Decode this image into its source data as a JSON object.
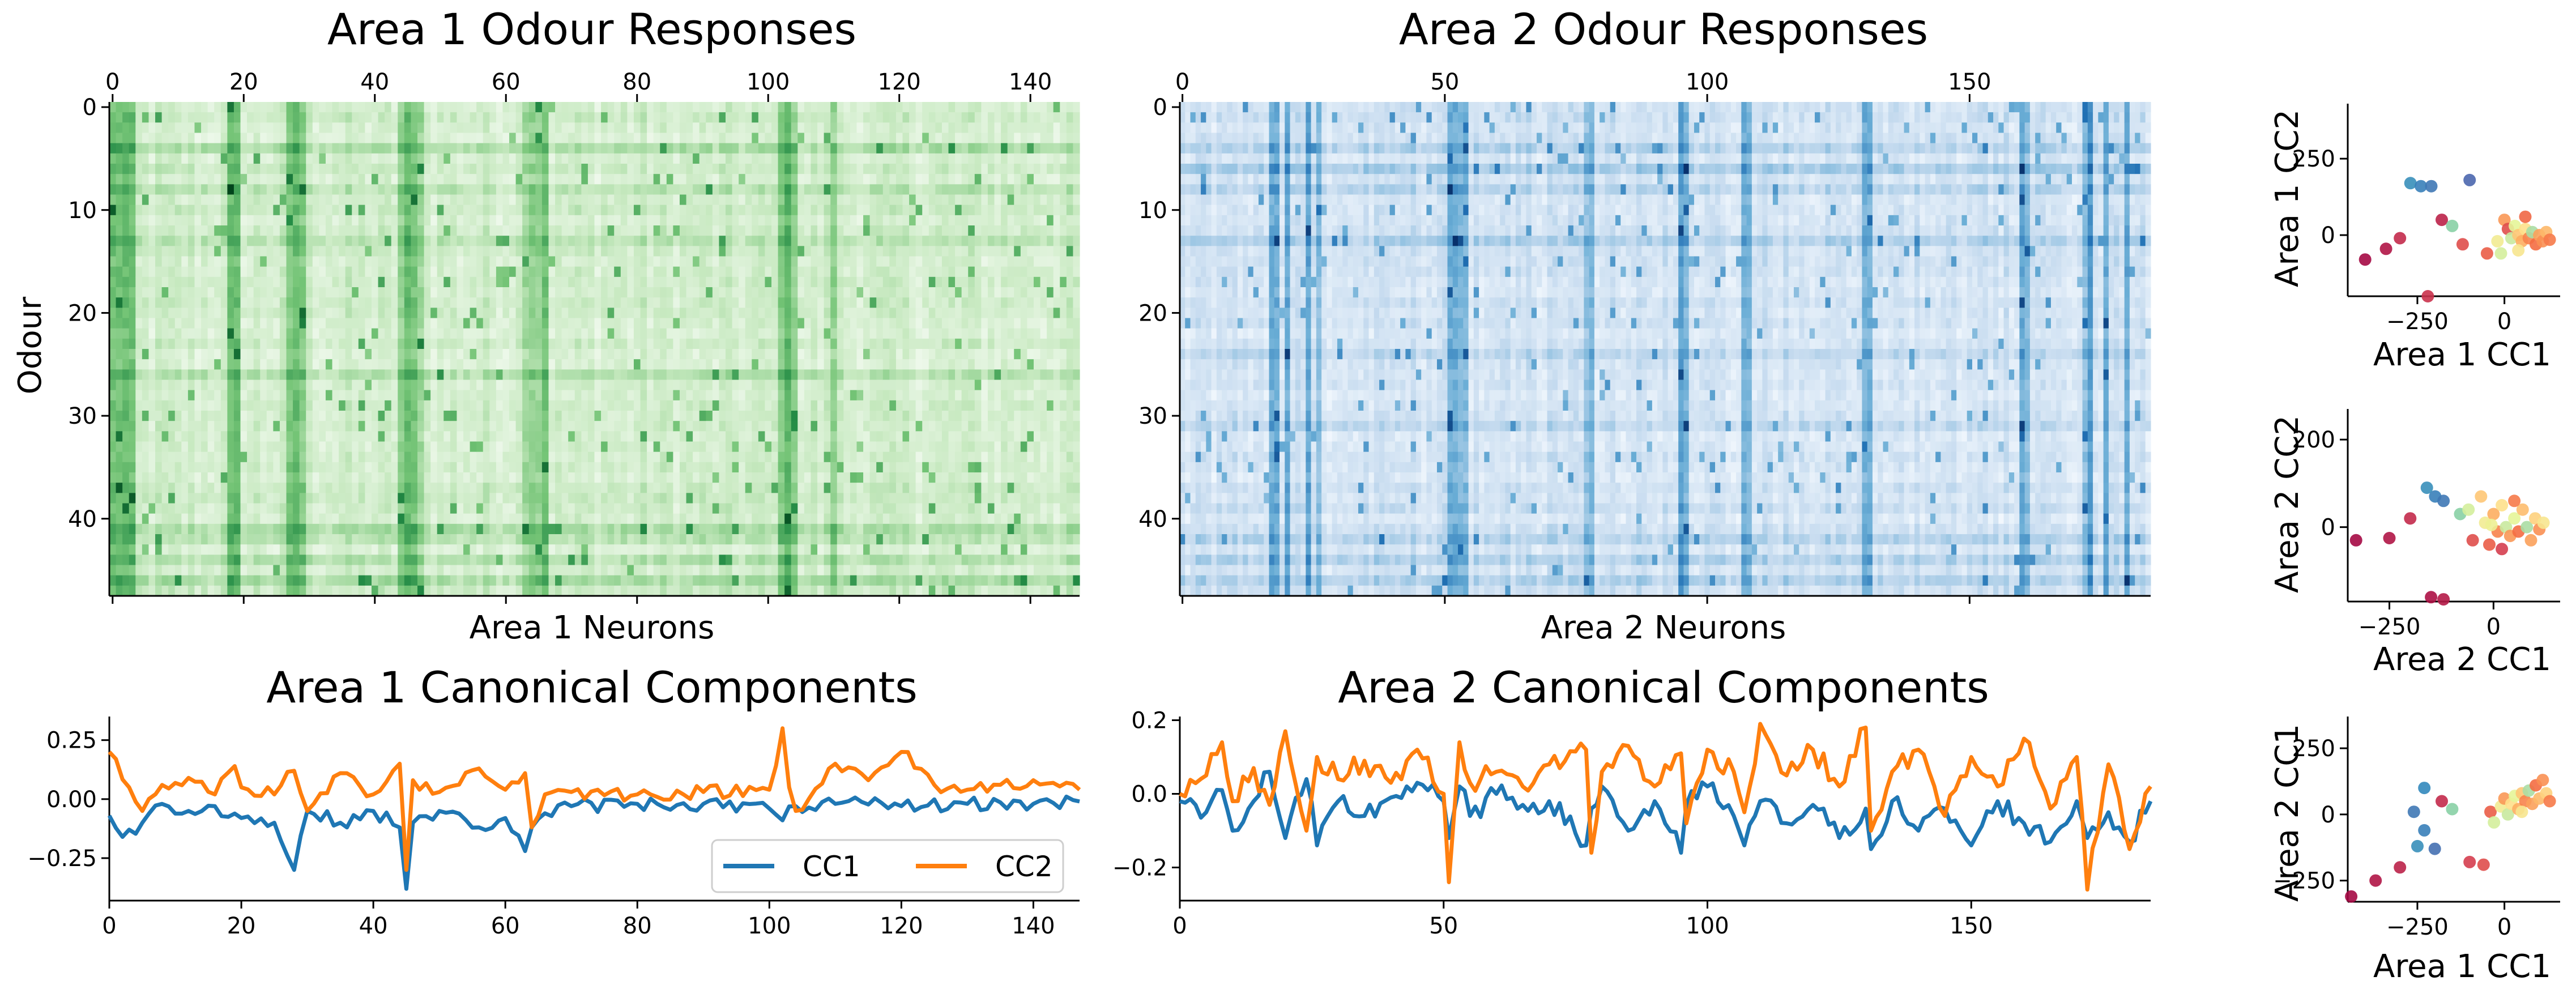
{
  "chart_data": [
    {
      "type": "heatmap",
      "title": "Area 1 Odour Responses",
      "xlabel": "Area 1 Neurons",
      "ylabel": "Odour",
      "x_ticks": [
        0,
        20,
        40,
        60,
        80,
        100,
        120,
        140
      ],
      "y_ticks": [
        0,
        10,
        20,
        30,
        40
      ],
      "n_neurons": 148,
      "n_odours": 48,
      "colormap": "Greens",
      "strong_neuron_columns": [
        0,
        1,
        2,
        3,
        18,
        19,
        27,
        28,
        29,
        44,
        45,
        46,
        47,
        63,
        64,
        65,
        66,
        102,
        103,
        104,
        110
      ],
      "strong_odour_rows": [
        4,
        8,
        13,
        26,
        41,
        42,
        44,
        46
      ],
      "description_level": "approximate"
    },
    {
      "type": "heatmap",
      "title": "Area 2 Odour Responses",
      "xlabel": "Area 2 Neurons",
      "ylabel": "",
      "x_ticks": [
        0,
        50,
        100,
        150
      ],
      "y_ticks": [
        0,
        10,
        20,
        30,
        40
      ],
      "n_neurons": 185,
      "n_odours": 48,
      "colormap": "Blues",
      "strong_neuron_columns": [
        17,
        18,
        20,
        24,
        26,
        51,
        52,
        53,
        54,
        77,
        78,
        95,
        96,
        107,
        108,
        130,
        131,
        160,
        161,
        172,
        173,
        176,
        180
      ],
      "strong_odour_rows": [
        4,
        6,
        8,
        13,
        24,
        31,
        42,
        44,
        46
      ],
      "description_level": "approximate"
    },
    {
      "type": "line",
      "title": "Area 1 Canonical Components",
      "xlim": [
        0,
        147
      ],
      "ylim": [
        -0.43,
        0.35
      ],
      "x_ticks": [
        0,
        20,
        40,
        60,
        80,
        100,
        120,
        140
      ],
      "y_ticks": [
        "0.25",
        "0.00",
        "−0.25"
      ],
      "y_tick_values": [
        0.25,
        0.0,
        -0.25
      ],
      "legend": {
        "position": "lower-right",
        "entries": [
          "CC1",
          "CC2"
        ]
      },
      "series": [
        {
          "name": "CC1",
          "color": "#1f77b4",
          "x": [
            0,
            2,
            5,
            8,
            12,
            16,
            20,
            25,
            28,
            30,
            35,
            40,
            44,
            45,
            46,
            50,
            56,
            60,
            63,
            64,
            66,
            70,
            80,
            90,
            100,
            102,
            104,
            110,
            120,
            130,
            140,
            147
          ],
          "y": [
            -0.07,
            -0.16,
            -0.1,
            -0.02,
            -0.05,
            -0.03,
            -0.08,
            -0.1,
            -0.3,
            -0.05,
            -0.1,
            -0.05,
            -0.12,
            -0.38,
            -0.1,
            -0.05,
            -0.12,
            -0.08,
            -0.22,
            -0.12,
            -0.06,
            -0.03,
            -0.02,
            -0.02,
            -0.04,
            -0.09,
            -0.03,
            -0.02,
            -0.03,
            -0.02,
            -0.02,
            -0.01
          ]
        },
        {
          "name": "CC2",
          "color": "#ff7f0e",
          "x": [
            0,
            1,
            3,
            5,
            8,
            12,
            16,
            19,
            20,
            25,
            28,
            30,
            35,
            40,
            44,
            45,
            46,
            50,
            56,
            60,
            63,
            64,
            66,
            70,
            80,
            90,
            100,
            102,
            103,
            104,
            110,
            115,
            120,
            125,
            130,
            140,
            147
          ],
          "y": [
            0.2,
            0.17,
            0.05,
            -0.05,
            0.06,
            0.09,
            0.02,
            0.14,
            0.05,
            0.02,
            0.12,
            -0.05,
            0.11,
            0.02,
            0.15,
            -0.3,
            0.08,
            0.03,
            0.13,
            0.04,
            0.11,
            -0.12,
            0.02,
            0.03,
            0.02,
            0.03,
            0.04,
            0.3,
            0.05,
            -0.05,
            0.15,
            0.08,
            0.2,
            0.06,
            0.04,
            0.08,
            0.04
          ]
        }
      ]
    },
    {
      "type": "line",
      "title": "Area 2 Canonical Components",
      "xlim": [
        0,
        184
      ],
      "ylim": [
        -0.29,
        0.21
      ],
      "x_ticks": [
        0,
        50,
        100,
        150
      ],
      "y_ticks": [
        "0.2",
        "0.0",
        "−0.2"
      ],
      "y_tick_values": [
        0.2,
        0.0,
        -0.2
      ],
      "series": [
        {
          "name": "CC1",
          "color": "#1f77b4",
          "x": [
            0,
            5,
            8,
            10,
            14,
            17,
            20,
            24,
            26,
            30,
            35,
            40,
            45,
            50,
            51,
            53,
            55,
            60,
            65,
            70,
            77,
            78,
            80,
            85,
            90,
            95,
            96,
            100,
            105,
            107,
            110,
            115,
            120,
            125,
            130,
            131,
            135,
            140,
            145,
            150,
            155,
            160,
            165,
            170,
            172,
            176,
            180,
            184
          ],
          "y": [
            -0.02,
            -0.05,
            0.01,
            -0.1,
            -0.02,
            0.06,
            -0.12,
            0.04,
            -0.14,
            -0.02,
            -0.06,
            -0.01,
            0.03,
            -0.02,
            -0.12,
            0.02,
            -0.06,
            0.0,
            -0.03,
            -0.02,
            -0.14,
            -0.04,
            0.02,
            -0.1,
            -0.02,
            -0.16,
            -0.03,
            0.02,
            -0.06,
            -0.14,
            -0.02,
            -0.08,
            -0.03,
            -0.12,
            -0.04,
            -0.15,
            -0.02,
            -0.1,
            -0.04,
            -0.14,
            -0.02,
            -0.08,
            -0.13,
            -0.02,
            -0.12,
            -0.05,
            -0.13,
            -0.02
          ]
        },
        {
          "name": "CC2",
          "color": "#ff7f0e",
          "x": [
            0,
            5,
            8,
            10,
            14,
            17,
            20,
            24,
            26,
            30,
            35,
            40,
            45,
            50,
            51,
            53,
            55,
            60,
            65,
            70,
            77,
            78,
            80,
            85,
            90,
            95,
            96,
            100,
            105,
            107,
            110,
            115,
            120,
            125,
            130,
            131,
            135,
            140,
            145,
            150,
            155,
            160,
            165,
            170,
            172,
            176,
            180,
            184
          ],
          "y": [
            0.0,
            0.05,
            0.14,
            -0.02,
            0.07,
            -0.03,
            0.17,
            -0.1,
            0.1,
            0.04,
            0.09,
            0.03,
            0.12,
            0.0,
            -0.24,
            0.14,
            0.03,
            0.06,
            0.02,
            0.08,
            0.12,
            -0.16,
            0.06,
            0.13,
            0.02,
            0.11,
            -0.08,
            0.12,
            0.06,
            -0.05,
            0.19,
            0.05,
            0.12,
            0.02,
            0.18,
            -0.1,
            0.06,
            0.12,
            -0.06,
            0.1,
            0.02,
            0.15,
            -0.04,
            0.1,
            -0.26,
            0.08,
            -0.15,
            0.02
          ]
        }
      ]
    },
    {
      "type": "scatter",
      "xlabel": "Area 1 CC1",
      "ylabel": "Area 1 CC2",
      "xlim": [
        -450,
        160
      ],
      "ylim": [
        -200,
        430
      ],
      "x_ticks": [
        "−250",
        "0"
      ],
      "x_tick_values": [
        -250,
        0
      ],
      "y_ticks": [
        "250",
        "0"
      ],
      "y_tick_values": [
        250,
        0
      ],
      "colormap": "Spectral",
      "points": [
        {
          "x": -400,
          "y": -80,
          "c": 0.02
        },
        {
          "x": -340,
          "y": -45,
          "c": 0.05
        },
        {
          "x": -300,
          "y": -10,
          "c": 0.1
        },
        {
          "x": -270,
          "y": 170,
          "c": 0.92
        },
        {
          "x": -240,
          "y": 160,
          "c": 0.94
        },
        {
          "x": -210,
          "y": 160,
          "c": 0.95
        },
        {
          "x": -180,
          "y": 50,
          "c": 0.08
        },
        {
          "x": -150,
          "y": 30,
          "c": 0.8
        },
        {
          "x": -100,
          "y": 180,
          "c": 0.97
        },
        {
          "x": -220,
          "y": -200,
          "c": 0.12
        },
        {
          "x": -120,
          "y": -30,
          "c": 0.2
        },
        {
          "x": -50,
          "y": -60,
          "c": 0.25
        },
        {
          "x": -20,
          "y": -20,
          "c": 0.6
        },
        {
          "x": 0,
          "y": 50,
          "c": 0.4
        },
        {
          "x": 10,
          "y": 20,
          "c": 0.2
        },
        {
          "x": 20,
          "y": -10,
          "c": 0.7
        },
        {
          "x": 30,
          "y": 30,
          "c": 0.65
        },
        {
          "x": 40,
          "y": 0,
          "c": 0.5
        },
        {
          "x": 50,
          "y": -20,
          "c": 0.45
        },
        {
          "x": 60,
          "y": 20,
          "c": 0.55
        },
        {
          "x": 70,
          "y": -10,
          "c": 0.35
        },
        {
          "x": 80,
          "y": 10,
          "c": 0.75
        },
        {
          "x": 90,
          "y": -30,
          "c": 0.3
        },
        {
          "x": 100,
          "y": 0,
          "c": 0.42
        },
        {
          "x": 110,
          "y": -20,
          "c": 0.38
        },
        {
          "x": 120,
          "y": 10,
          "c": 0.47
        },
        {
          "x": 130,
          "y": -15,
          "c": 0.33
        },
        {
          "x": -10,
          "y": -60,
          "c": 0.68
        },
        {
          "x": 40,
          "y": -50,
          "c": 0.58
        },
        {
          "x": 60,
          "y": 60,
          "c": 0.28
        }
      ]
    },
    {
      "type": "scatter",
      "xlabel": "Area 2 CC1",
      "ylabel": "Area 2 CC2",
      "xlim": [
        -350,
        160
      ],
      "ylim": [
        -170,
        270
      ],
      "x_ticks": [
        "−250",
        "0"
      ],
      "x_tick_values": [
        -250,
        0
      ],
      "y_ticks": [
        "200",
        "0"
      ],
      "y_tick_values": [
        200,
        0
      ],
      "colormap": "Spectral",
      "points": [
        {
          "x": -330,
          "y": -30,
          "c": 0.02
        },
        {
          "x": -250,
          "y": -25,
          "c": 0.05
        },
        {
          "x": -200,
          "y": 20,
          "c": 0.1
        },
        {
          "x": -160,
          "y": 90,
          "c": 0.92
        },
        {
          "x": -140,
          "y": 70,
          "c": 0.94
        },
        {
          "x": -120,
          "y": 60,
          "c": 0.95
        },
        {
          "x": -150,
          "y": -160,
          "c": 0.04
        },
        {
          "x": -120,
          "y": -165,
          "c": 0.06
        },
        {
          "x": -80,
          "y": 30,
          "c": 0.8
        },
        {
          "x": -50,
          "y": -30,
          "c": 0.2
        },
        {
          "x": -30,
          "y": 70,
          "c": 0.5
        },
        {
          "x": -20,
          "y": 10,
          "c": 0.6
        },
        {
          "x": -10,
          "y": -40,
          "c": 0.25
        },
        {
          "x": 0,
          "y": 30,
          "c": 0.45
        },
        {
          "x": 10,
          "y": -10,
          "c": 0.35
        },
        {
          "x": 20,
          "y": 50,
          "c": 0.55
        },
        {
          "x": 30,
          "y": 0,
          "c": 0.7
        },
        {
          "x": 40,
          "y": -20,
          "c": 0.4
        },
        {
          "x": 50,
          "y": 20,
          "c": 0.65
        },
        {
          "x": 60,
          "y": -10,
          "c": 0.3
        },
        {
          "x": 70,
          "y": 40,
          "c": 0.48
        },
        {
          "x": 80,
          "y": 0,
          "c": 0.75
        },
        {
          "x": 90,
          "y": -30,
          "c": 0.42
        },
        {
          "x": 100,
          "y": 20,
          "c": 0.52
        },
        {
          "x": 110,
          "y": -5,
          "c": 0.38
        },
        {
          "x": 120,
          "y": 10,
          "c": 0.58
        },
        {
          "x": -60,
          "y": 40,
          "c": 0.68
        },
        {
          "x": 20,
          "y": -50,
          "c": 0.15
        },
        {
          "x": 50,
          "y": 60,
          "c": 0.33
        },
        {
          "x": -5,
          "y": 5,
          "c": 0.62
        }
      ]
    },
    {
      "type": "scatter",
      "xlabel": "Area 1 CC1",
      "ylabel": "Area 2 CC1",
      "xlim": [
        -450,
        160
      ],
      "ylim": [
        -330,
        370
      ],
      "x_ticks": [
        "−250",
        "0"
      ],
      "x_tick_values": [
        -250,
        0
      ],
      "y_ticks": [
        "250",
        "0",
        "−250"
      ],
      "y_tick_values": [
        250,
        0,
        -250
      ],
      "colormap": "Spectral",
      "points": [
        {
          "x": -440,
          "y": -310,
          "c": 0.02
        },
        {
          "x": -370,
          "y": -250,
          "c": 0.05
        },
        {
          "x": -300,
          "y": -200,
          "c": 0.08
        },
        {
          "x": -250,
          "y": -120,
          "c": 0.92
        },
        {
          "x": -230,
          "y": -60,
          "c": 0.94
        },
        {
          "x": -200,
          "y": -130,
          "c": 0.96
        },
        {
          "x": -260,
          "y": 10,
          "c": 0.95
        },
        {
          "x": -230,
          "y": 100,
          "c": 0.93
        },
        {
          "x": -180,
          "y": 50,
          "c": 0.1
        },
        {
          "x": -150,
          "y": 20,
          "c": 0.8
        },
        {
          "x": -100,
          "y": -180,
          "c": 0.15
        },
        {
          "x": -60,
          "y": -190,
          "c": 0.2
        },
        {
          "x": -40,
          "y": 10,
          "c": 0.25
        },
        {
          "x": -10,
          "y": 30,
          "c": 0.6
        },
        {
          "x": 0,
          "y": 60,
          "c": 0.4
        },
        {
          "x": 10,
          "y": 0,
          "c": 0.7
        },
        {
          "x": 20,
          "y": 40,
          "c": 0.55
        },
        {
          "x": 30,
          "y": 70,
          "c": 0.65
        },
        {
          "x": 40,
          "y": 20,
          "c": 0.45
        },
        {
          "x": 50,
          "y": 80,
          "c": 0.5
        },
        {
          "x": 60,
          "y": 50,
          "c": 0.35
        },
        {
          "x": 70,
          "y": 90,
          "c": 0.75
        },
        {
          "x": 80,
          "y": 40,
          "c": 0.42
        },
        {
          "x": 90,
          "y": 110,
          "c": 0.3
        },
        {
          "x": 100,
          "y": 60,
          "c": 0.47
        },
        {
          "x": 110,
          "y": 130,
          "c": 0.38
        },
        {
          "x": 120,
          "y": 80,
          "c": 0.52
        },
        {
          "x": 130,
          "y": 50,
          "c": 0.33
        },
        {
          "x": -30,
          "y": -30,
          "c": 0.68
        },
        {
          "x": 50,
          "y": 10,
          "c": 0.58
        }
      ]
    }
  ]
}
